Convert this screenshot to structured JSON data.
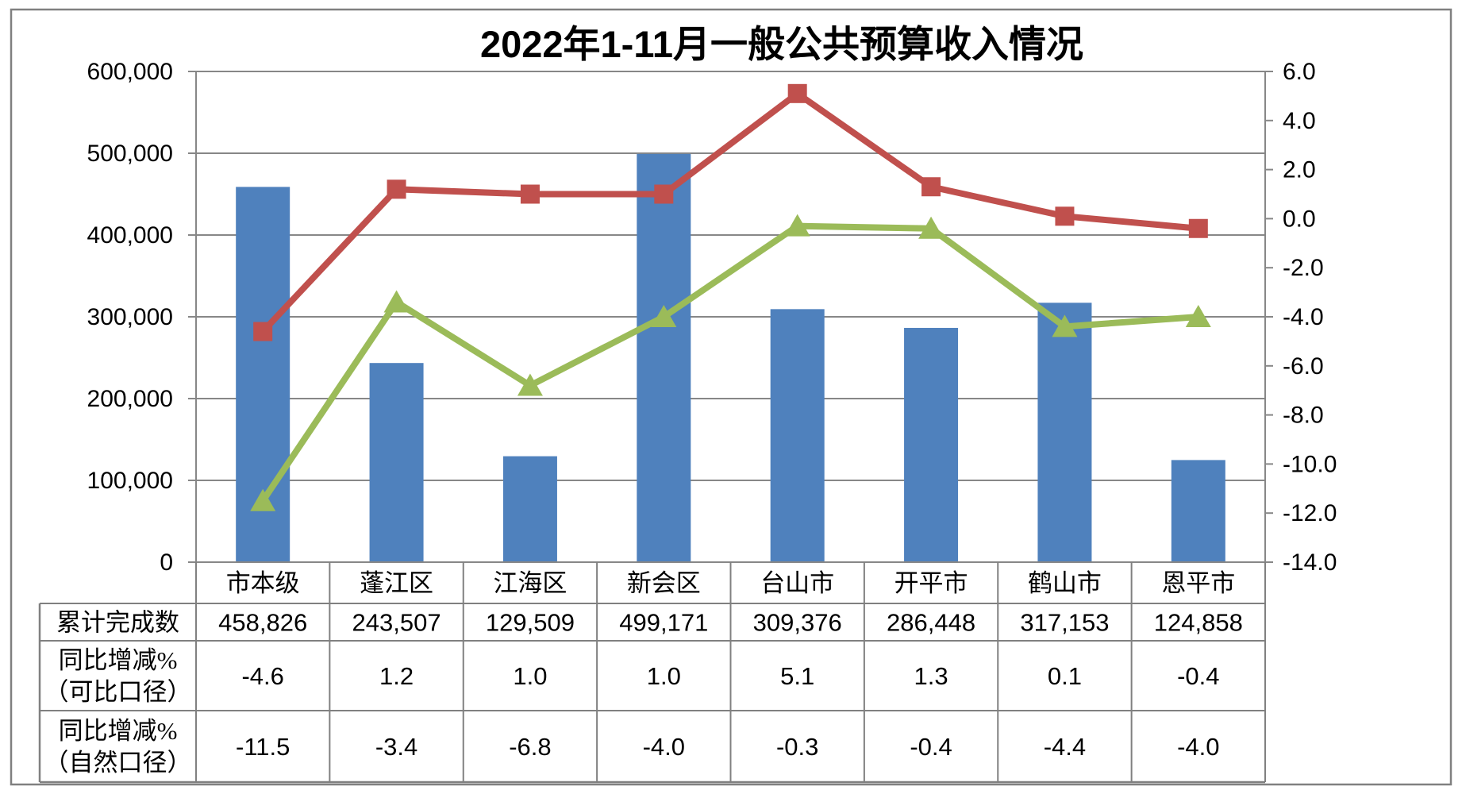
{
  "chart_data": {
    "type": "bar",
    "title": "2022年1-11月一般公共预算收入情况",
    "categories": [
      "市本级",
      "蓬江区",
      "江海区",
      "新会区",
      "台山市",
      "开平市",
      "鹤山市",
      "恩平市"
    ],
    "series": [
      {
        "name": "累计完成数",
        "type": "bar",
        "axis": "left",
        "marker": "none",
        "values": [
          458826,
          243507,
          129509,
          499171,
          309376,
          286448,
          317153,
          124858
        ]
      },
      {
        "name": "同比增减%（可比口径）",
        "type": "line",
        "axis": "right",
        "marker": "square",
        "values": [
          -4.6,
          1.2,
          1.0,
          1.0,
          5.1,
          1.3,
          0.1,
          -0.4
        ]
      },
      {
        "name": "同比增减%（自然口径）",
        "type": "line",
        "axis": "right",
        "marker": "triangle",
        "values": [
          -11.5,
          -3.4,
          -6.8,
          -4.0,
          -0.3,
          -0.4,
          -4.4,
          -4.0
        ]
      }
    ],
    "left_axis": {
      "min": 0,
      "max": 600000,
      "step": 100000,
      "labels": [
        "0",
        "100,000",
        "200,000",
        "300,000",
        "400,000",
        "500,000",
        "600,000"
      ]
    },
    "right_axis": {
      "min": -14,
      "max": 6,
      "step": 2,
      "labels": [
        "6.0",
        "4.0",
        "2.0",
        "0.0",
        "-2.0",
        "-4.0",
        "-6.0",
        "-8.0",
        "-10.0",
        "-12.0",
        "-14.0"
      ]
    },
    "grid": true,
    "legend": "none"
  },
  "data_table": {
    "rows": [
      {
        "header": [
          "累计完成数"
        ],
        "values": [
          "458,826",
          "243,507",
          "129,509",
          "499,171",
          "309,376",
          "286,448",
          "317,153",
          "124,858"
        ]
      },
      {
        "header": [
          "同比增减%",
          "（可比口径）"
        ],
        "values": [
          "-4.6",
          "1.2",
          "1.0",
          "1.0",
          "5.1",
          "1.3",
          "0.1",
          "-0.4"
        ]
      },
      {
        "header": [
          "同比增减%",
          "（自然口径）"
        ],
        "values": [
          "-11.5",
          "-3.4",
          "-6.8",
          "-4.0",
          "-0.3",
          "-0.4",
          "-4.4",
          "-4.0"
        ]
      }
    ]
  },
  "colors": {
    "bar": "#4F81BD",
    "line_comparable": "#C0504D",
    "line_natural": "#9BBB59",
    "gridline": "#878787",
    "axis": "#878787",
    "table_border": "#808080",
    "frame": "#808080",
    "text": "#000000"
  }
}
